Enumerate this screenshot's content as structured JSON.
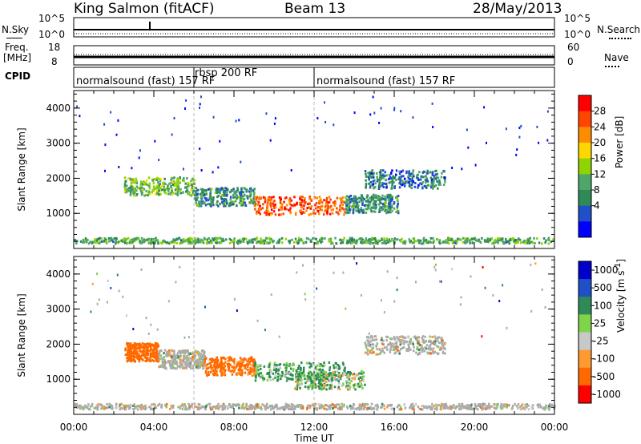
{
  "header": {
    "station": "King Salmon (fitACF)",
    "beam": "Beam 13",
    "date": "28/May/2013"
  },
  "strips": {
    "nsky_label": "N.Sky",
    "nsearch_label": "N.Search",
    "noise_ticks_left": [
      "10^5",
      "10^0"
    ],
    "noise_ticks_right": [
      "10^5",
      "10^0"
    ],
    "freq_label_line1": "Freq.",
    "freq_label_line2": "[MHz]",
    "freq_ticks": [
      "18",
      "8"
    ],
    "nave_label": "Nave",
    "nave_ticks": [
      "60",
      "0"
    ],
    "cpid_label": "CPID"
  },
  "cpid_segments": [
    {
      "label": "normalsound (fast) 157 RF",
      "start_hour": 0
    },
    {
      "label": "rbsp 200 RF",
      "start_hour": 6
    },
    {
      "label": "normalsound (fast) 157 RF",
      "start_hour": 12
    }
  ],
  "colors": {
    "power_scale": [
      "#0000ff",
      "#2050c8",
      "#2e8b57",
      "#4fa56a",
      "#8fd400",
      "#ffd700",
      "#ff8c00",
      "#ff4500",
      "#ff0000"
    ],
    "velocity_scale": [
      "#0000cd",
      "#2050c8",
      "#2e8b57",
      "#7fd44a",
      "#c8c8c8",
      "#ff9a30",
      "#ff6a00",
      "#ff0000"
    ],
    "ground_scatter": "#aaaaaa"
  },
  "chart_data": [
    {
      "type": "heatmap",
      "title": "",
      "xlabel": "Time UT",
      "ylabel": "Slant Range [km]",
      "xlim": [
        0,
        24
      ],
      "ylim": [
        0,
        4500
      ],
      "x_ticks": [
        "00:00",
        "04:00",
        "08:00",
        "12:00",
        "16:00",
        "20:00",
        "00:00"
      ],
      "y_ticks": [
        "1000",
        "2000",
        "3000",
        "4000"
      ],
      "colorbar": {
        "label": "Power [dB]",
        "ticks": [
          "28",
          "24",
          "20",
          "16",
          "12",
          "8",
          "4"
        ]
      },
      "scatter_regions": [
        {
          "t_start": 2.5,
          "t_end": 6.0,
          "r_center": 1800,
          "value": 12
        },
        {
          "t_start": 6.0,
          "t_end": 9.0,
          "r_center": 1500,
          "value": 8
        },
        {
          "t_start": 9.0,
          "t_end": 13.5,
          "r_center": 1250,
          "value": 24
        },
        {
          "t_start": 13.5,
          "t_end": 16.2,
          "r_center": 1300,
          "value": 8
        },
        {
          "t_start": 14.5,
          "t_end": 18.5,
          "r_center": 2000,
          "value": 6
        },
        {
          "t_start": 0.0,
          "t_end": 24.0,
          "r_center": 250,
          "value": 10
        }
      ]
    },
    {
      "type": "heatmap",
      "title": "",
      "xlabel": "Time UT",
      "ylabel": "Slant Range [km]",
      "xlim": [
        0,
        24
      ],
      "ylim": [
        0,
        4500
      ],
      "x_ticks": [
        "00:00",
        "04:00",
        "08:00",
        "12:00",
        "16:00",
        "20:00",
        "00:00"
      ],
      "y_ticks": [
        "1000",
        "2000",
        "3000",
        "4000"
      ],
      "colorbar": {
        "label": "Velocity [m s^-1]",
        "ticks": [
          "1000",
          "500",
          "100",
          "25",
          "-25",
          "-100",
          "-500",
          "-1000"
        ]
      },
      "scatter_regions": [
        {
          "t_start": 2.5,
          "t_end": 4.2,
          "r_center": 1800,
          "value": -300
        },
        {
          "t_start": 4.2,
          "t_end": 6.5,
          "r_center": 1600,
          "value": 0
        },
        {
          "t_start": 6.5,
          "t_end": 9.0,
          "r_center": 1400,
          "value": -200
        },
        {
          "t_start": 9.0,
          "t_end": 13.5,
          "r_center": 1250,
          "value": 150
        },
        {
          "t_start": 11.0,
          "t_end": 14.5,
          "r_center": 1000,
          "value": 80
        },
        {
          "t_start": 14.5,
          "t_end": 18.5,
          "r_center": 2000,
          "value": 0
        },
        {
          "t_start": 0.0,
          "t_end": 24.0,
          "r_center": 250,
          "value": 0
        }
      ]
    }
  ]
}
